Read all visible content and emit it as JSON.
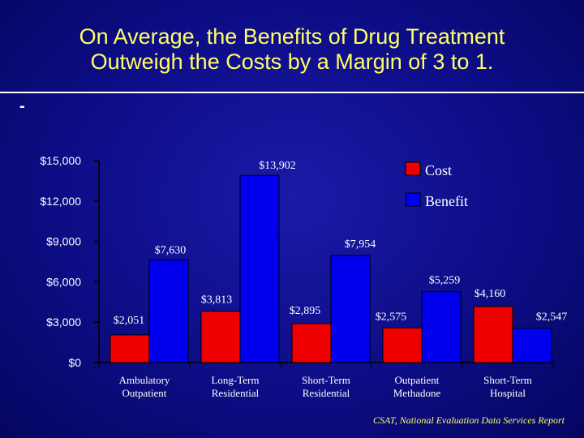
{
  "slide": {
    "title_line1": "On Average, the Benefits of Drug Treatment",
    "title_line2": "Outweigh the Costs by a Margin of 3 to 1.",
    "bullet": "-",
    "source": "CSAT, National Evaluation Data Services Report"
  },
  "colors": {
    "cost": "#ee0000",
    "benefit": "#0000ee",
    "title": "#ffff66",
    "text": "#ffffff"
  },
  "chart_data": {
    "type": "bar",
    "title": "",
    "xlabel": "",
    "ylabel": "",
    "ylim": [
      0,
      15000
    ],
    "yticks": [
      0,
      3000,
      6000,
      9000,
      12000,
      15000
    ],
    "ytick_labels": [
      "$0",
      "$3,000",
      "$6,000",
      "$9,000",
      "$12,000",
      "$15,000"
    ],
    "categories": [
      [
        "Ambulatory",
        "Outpatient"
      ],
      [
        "Long-Term",
        "Residential"
      ],
      [
        "Short-Term",
        "Residential"
      ],
      [
        "Outpatient",
        "Methadone"
      ],
      [
        "Short-Term",
        "Hospital"
      ]
    ],
    "series": [
      {
        "name": "Cost",
        "values": [
          2051,
          3813,
          2895,
          2575,
          4160
        ],
        "labels": [
          "$2,051",
          "$3,813",
          "$2,895",
          "$2,575",
          "$4,160"
        ]
      },
      {
        "name": "Benefit",
        "values": [
          7630,
          13902,
          7954,
          5259,
          2547
        ],
        "labels": [
          "$7,630",
          "$13,902",
          "$7,954",
          "$5,259",
          "$2,547"
        ]
      }
    ],
    "legend_position": "top-right",
    "grid": false
  }
}
